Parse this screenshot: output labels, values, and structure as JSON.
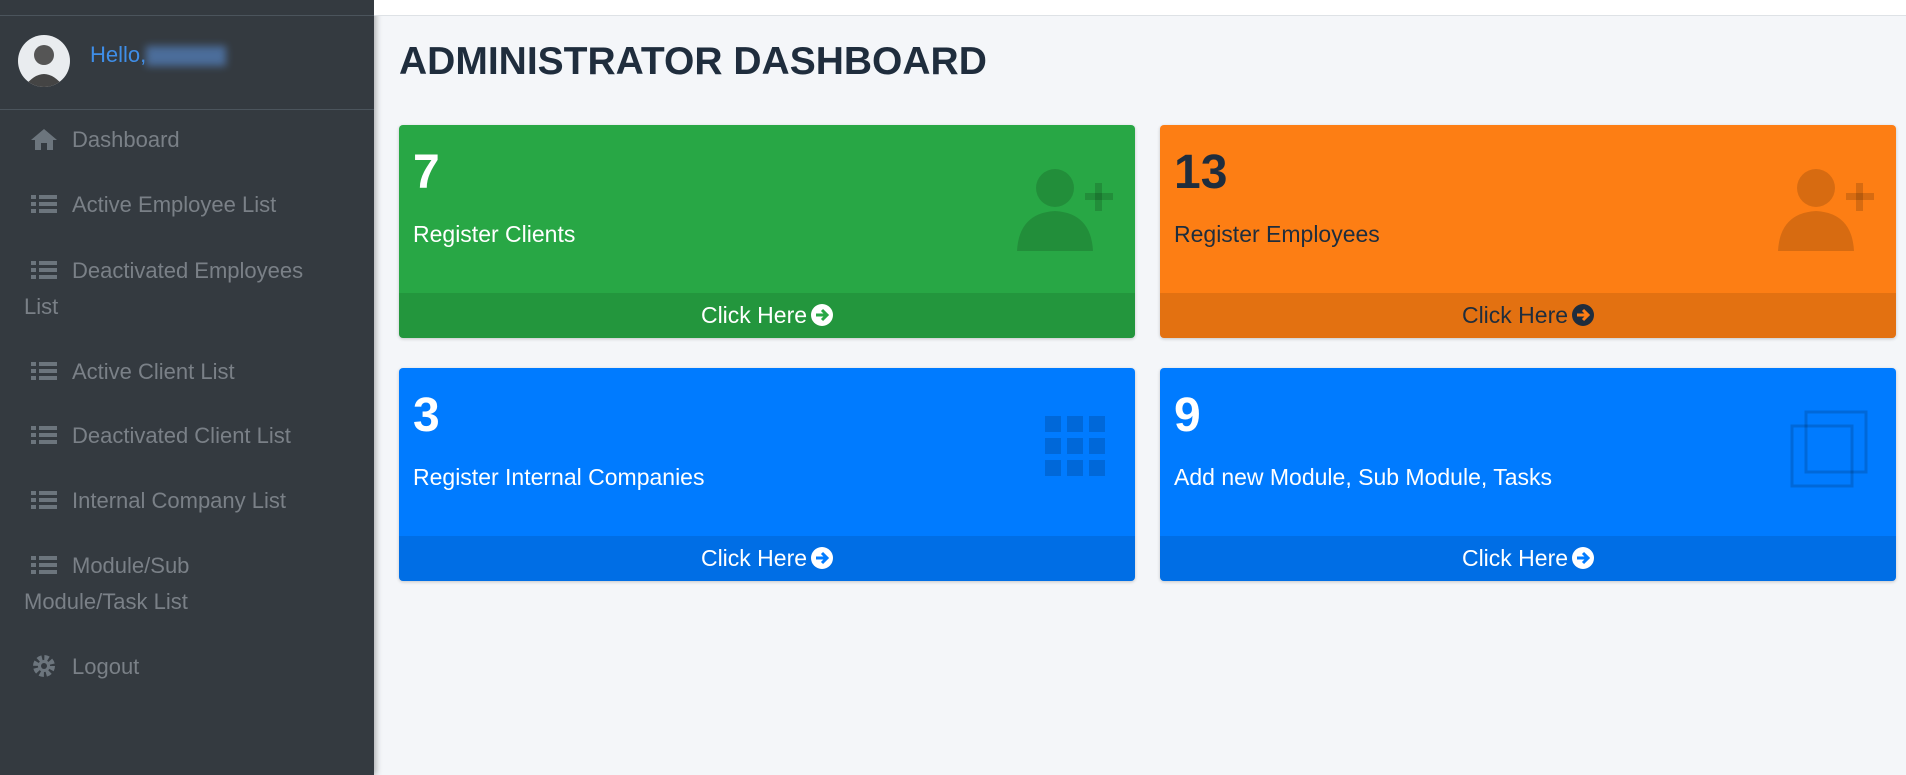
{
  "sidebar": {
    "greeting": "Hello,",
    "menu": [
      "Dashboard",
      "Active Employee List",
      "Deactivated Employees List",
      "Active Client List",
      "Deactivated Client List",
      "Internal Company List",
      "Module/Sub Module/Task List",
      "Logout"
    ]
  },
  "header": {
    "title": "ADMINISTRATOR DASHBOARD"
  },
  "cards": [
    {
      "value": 7,
      "label": "Register Clients",
      "link": "Click Here"
    },
    {
      "value": 13,
      "label": "Register Employees",
      "link": "Click Here"
    },
    {
      "value": 3,
      "label": "Register Internal Companies",
      "link": "Click Here"
    },
    {
      "value": 9,
      "label": "Add new Module, Sub Module, Tasks",
      "link": "Click Here"
    }
  ]
}
